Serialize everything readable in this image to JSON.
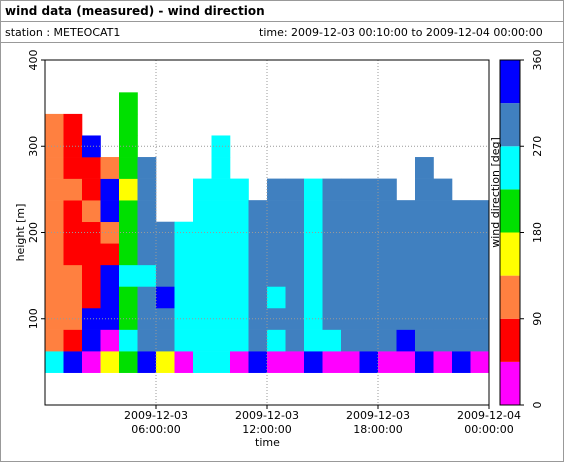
{
  "chart_data": {
    "type": "heatmap",
    "title": "wind data (measured) - wind direction",
    "station": "station : METEOCAT1",
    "time_range": "time: 2009-12-03 00:10:00 to 2009-12-04 00:00:00",
    "xlabel": "time",
    "ylabel": "height [m]",
    "colorbar_label": "wind direction [deg]",
    "x": [
      0.5,
      1.5,
      2.5,
      3.5,
      4.5,
      5.5,
      6.5,
      7.5,
      8.5,
      9.5,
      10.5,
      11.5,
      12.5,
      13.5,
      14.5,
      15.5,
      16.5,
      17.5,
      18.5,
      19.5,
      20.5,
      21.5,
      22.5,
      23.5
    ],
    "y": [
      50,
      75,
      100,
      125,
      150,
      175,
      200,
      225,
      250,
      275,
      300,
      325,
      350
    ],
    "values": [
      [
        250,
        110,
        110,
        110,
        110,
        110,
        110,
        110,
        110,
        110,
        110,
        110,
        null
      ],
      [
        340,
        70,
        110,
        110,
        110,
        70,
        70,
        70,
        110,
        70,
        70,
        70,
        null
      ],
      [
        20,
        340,
        340,
        70,
        70,
        70,
        70,
        110,
        70,
        70,
        340,
        null,
        null
      ],
      [
        160,
        20,
        340,
        340,
        340,
        70,
        110,
        340,
        340,
        110,
        null,
        null,
        null
      ],
      [
        200,
        250,
        200,
        200,
        250,
        200,
        200,
        200,
        160,
        200,
        200,
        200,
        200
      ],
      [
        340,
        290,
        290,
        290,
        250,
        290,
        290,
        290,
        290,
        290,
        null,
        null,
        null
      ],
      [
        160,
        290,
        290,
        340,
        290,
        290,
        290,
        null,
        null,
        null,
        null,
        null,
        null
      ],
      [
        20,
        250,
        250,
        250,
        250,
        250,
        250,
        null,
        null,
        null,
        null,
        null,
        null
      ],
      [
        250,
        250,
        250,
        250,
        250,
        250,
        250,
        250,
        250,
        null,
        null,
        null,
        null
      ],
      [
        250,
        250,
        250,
        250,
        250,
        250,
        250,
        250,
        250,
        250,
        250,
        null,
        null
      ],
      [
        20,
        250,
        250,
        250,
        250,
        250,
        250,
        250,
        250,
        null,
        null,
        null,
        null
      ],
      [
        340,
        290,
        290,
        290,
        290,
        290,
        290,
        290,
        null,
        null,
        null,
        null,
        null
      ],
      [
        20,
        250,
        290,
        250,
        290,
        290,
        290,
        290,
        290,
        null,
        null,
        null,
        null
      ],
      [
        20,
        290,
        290,
        290,
        290,
        290,
        290,
        290,
        290,
        null,
        null,
        null,
        null
      ],
      [
        340,
        250,
        250,
        250,
        250,
        250,
        250,
        250,
        250,
        null,
        null,
        null,
        null
      ],
      [
        20,
        250,
        290,
        290,
        290,
        290,
        290,
        290,
        290,
        null,
        null,
        null,
        null
      ],
      [
        20,
        290,
        290,
        290,
        290,
        290,
        290,
        290,
        290,
        null,
        null,
        null,
        null
      ],
      [
        340,
        290,
        290,
        290,
        290,
        290,
        290,
        290,
        290,
        null,
        null,
        null,
        null
      ],
      [
        20,
        290,
        290,
        290,
        290,
        290,
        290,
        290,
        290,
        null,
        null,
        null,
        null
      ],
      [
        20,
        340,
        290,
        290,
        290,
        290,
        290,
        290,
        null,
        null,
        null,
        null,
        null
      ],
      [
        340,
        290,
        290,
        290,
        290,
        290,
        290,
        290,
        290,
        290,
        null,
        null,
        null
      ],
      [
        20,
        290,
        290,
        290,
        290,
        290,
        290,
        290,
        290,
        null,
        null,
        null,
        null
      ],
      [
        340,
        290,
        290,
        290,
        290,
        290,
        290,
        290,
        null,
        null,
        null,
        null,
        null
      ],
      [
        20,
        290,
        290,
        290,
        290,
        290,
        290,
        290,
        null,
        null,
        null,
        null,
        null
      ]
    ],
    "cell_height": 25,
    "xlim": [
      0,
      24
    ],
    "xticks": [
      {
        "value": 6,
        "label": "2009-12-03 06:00:00"
      },
      {
        "value": 12,
        "label": "2009-12-03 12:00:00"
      },
      {
        "value": 18,
        "label": "2009-12-03 18:00:00"
      },
      {
        "value": 24,
        "label": "2009-12-04 00:00:00"
      }
    ],
    "ylim": [
      0,
      400
    ],
    "yticks": [
      100,
      200,
      300,
      400
    ],
    "clim": [
      0,
      360
    ],
    "cticks": [
      0,
      90,
      180,
      270,
      360
    ],
    "colors": [
      "#ff00ff",
      "#ff0000",
      "#ff8040",
      "#ffff00",
      "#00e000",
      "#00ffff",
      "#4080c0",
      "#0000ff"
    ],
    "grid": true
  }
}
